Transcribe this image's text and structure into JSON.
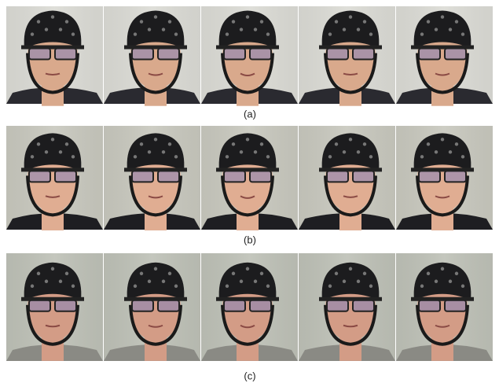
{
  "figure": {
    "rows": [
      {
        "label": "(a)"
      },
      {
        "label": "(b)"
      },
      {
        "label": "(c)"
      }
    ]
  }
}
